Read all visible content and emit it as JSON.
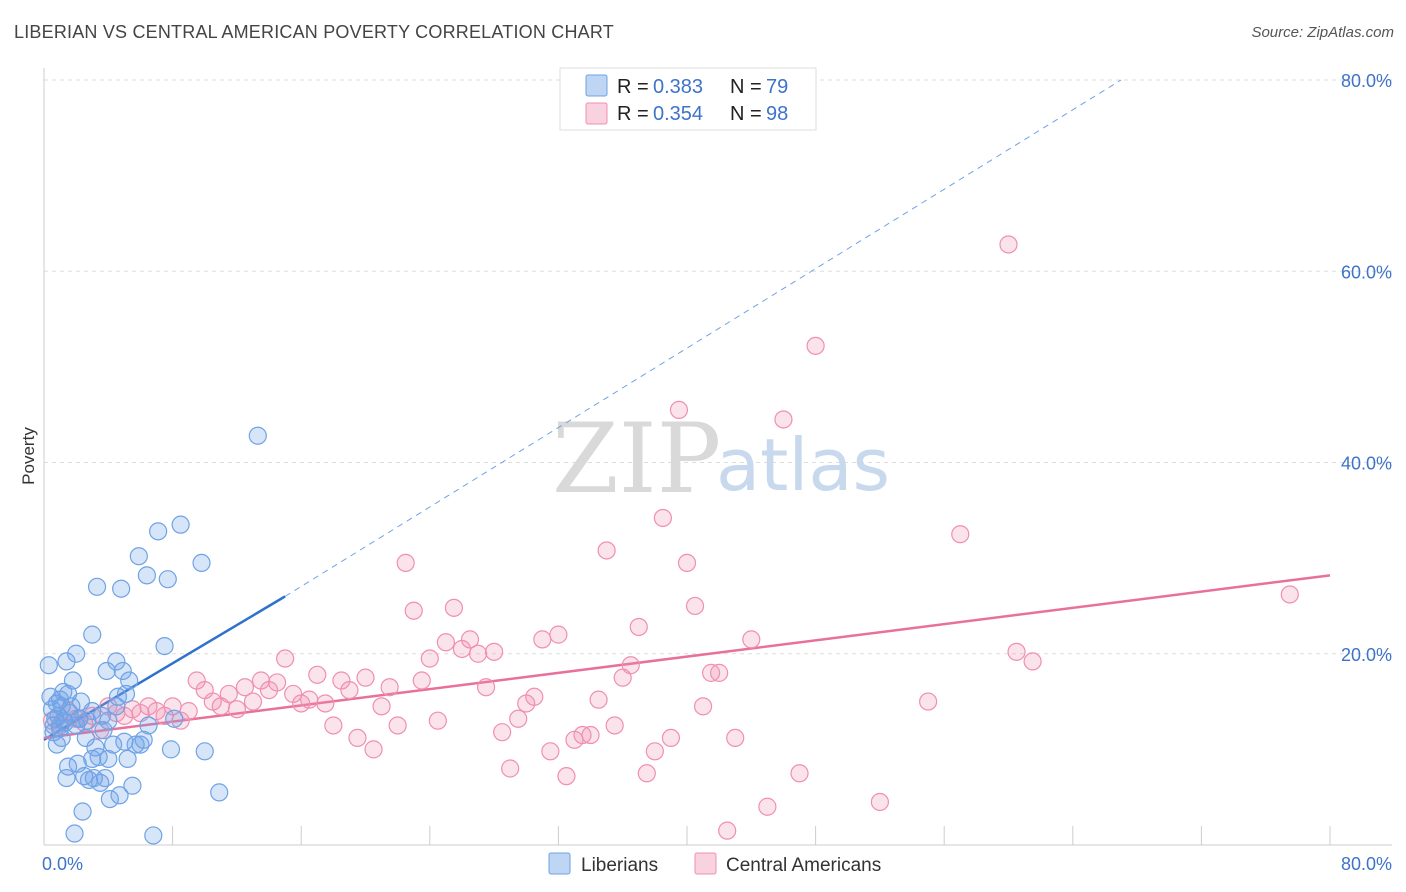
{
  "header": {
    "title": "LIBERIAN VS CENTRAL AMERICAN POVERTY CORRELATION CHART",
    "source": "Source: ZipAtlas.com"
  },
  "watermark": {
    "part1": "ZIP",
    "part2": "atlas"
  },
  "legend": {
    "rows": [
      {
        "r_label": "R =",
        "r_value": "0.383",
        "n_label": "N =",
        "n_value": "79",
        "color": "#6fa3e6"
      },
      {
        "r_label": "R =",
        "r_value": "0.354",
        "n_label": "N =",
        "n_value": "98",
        "color": "#f08fb0"
      }
    ]
  },
  "bottom_legend": [
    {
      "label": "Liberians",
      "color": "#6fa3e6"
    },
    {
      "label": "Central Americans",
      "color": "#f08fb0"
    }
  ],
  "chart_data": {
    "type": "scatter",
    "title": "LIBERIAN VS CENTRAL AMERICAN POVERTY CORRELATION CHART",
    "xlabel": "",
    "ylabel": "Poverty",
    "xlim": [
      0,
      80
    ],
    "ylim": [
      0,
      80
    ],
    "x_tick_labels": [
      "0.0%",
      "80.0%"
    ],
    "y_ticks": [
      20,
      40,
      60,
      80
    ],
    "y_tick_labels": [
      "20.0%",
      "40.0%",
      "60.0%",
      "80.0%"
    ],
    "grid": true,
    "legend_position": "top-center",
    "series": [
      {
        "name": "Liberians",
        "color": "#6fa3e6",
        "trend": {
          "x": [
            0,
            15
          ],
          "y": [
            11.0,
            26.0
          ],
          "extended_to": [
            67,
            80
          ]
        },
        "points": [
          [
            0.3,
            18.8
          ],
          [
            0.4,
            15.5
          ],
          [
            0.5,
            14.2
          ],
          [
            0.6,
            12.5
          ],
          [
            0.6,
            11.8
          ],
          [
            0.7,
            13.2
          ],
          [
            0.8,
            14.8
          ],
          [
            0.8,
            10.5
          ],
          [
            0.9,
            13.5
          ],
          [
            1.0,
            15.2
          ],
          [
            1.0,
            12.2
          ],
          [
            1.1,
            14.5
          ],
          [
            1.2,
            16.0
          ],
          [
            1.2,
            13.0
          ],
          [
            1.3,
            12.8
          ],
          [
            1.4,
            19.2
          ],
          [
            1.4,
            7.0
          ],
          [
            1.5,
            8.2
          ],
          [
            1.5,
            15.8
          ],
          [
            1.6,
            13.8
          ],
          [
            1.7,
            14.5
          ],
          [
            1.8,
            17.2
          ],
          [
            1.9,
            1.2
          ],
          [
            2.0,
            12.5
          ],
          [
            2.0,
            20.0
          ],
          [
            2.1,
            8.5
          ],
          [
            2.2,
            13.2
          ],
          [
            2.3,
            15.0
          ],
          [
            2.4,
            3.5
          ],
          [
            2.5,
            7.2
          ],
          [
            2.6,
            11.2
          ],
          [
            2.7,
            13.0
          ],
          [
            2.8,
            6.8
          ],
          [
            3.0,
            9.0
          ],
          [
            3.0,
            22.0
          ],
          [
            3.1,
            7.0
          ],
          [
            3.2,
            10.2
          ],
          [
            3.3,
            27.0
          ],
          [
            3.4,
            9.2
          ],
          [
            3.5,
            6.5
          ],
          [
            3.6,
            13.5
          ],
          [
            3.7,
            12.0
          ],
          [
            3.8,
            7.0
          ],
          [
            3.9,
            18.2
          ],
          [
            4.0,
            9.0
          ],
          [
            4.1,
            4.8
          ],
          [
            4.3,
            10.5
          ],
          [
            4.5,
            14.5
          ],
          [
            4.5,
            19.2
          ],
          [
            4.6,
            15.5
          ],
          [
            4.7,
            5.2
          ],
          [
            4.8,
            26.8
          ],
          [
            4.9,
            18.2
          ],
          [
            5.0,
            10.8
          ],
          [
            5.1,
            15.8
          ],
          [
            5.2,
            9.0
          ],
          [
            5.3,
            17.2
          ],
          [
            5.5,
            6.2
          ],
          [
            5.7,
            10.5
          ],
          [
            5.9,
            30.2
          ],
          [
            6.0,
            10.5
          ],
          [
            6.2,
            11.0
          ],
          [
            6.4,
            28.2
          ],
          [
            6.5,
            12.5
          ],
          [
            6.8,
            1.0
          ],
          [
            7.1,
            32.8
          ],
          [
            7.5,
            20.8
          ],
          [
            7.7,
            27.8
          ],
          [
            7.9,
            10.0
          ],
          [
            8.1,
            13.2
          ],
          [
            8.5,
            33.5
          ],
          [
            9.8,
            29.5
          ],
          [
            10.0,
            9.8
          ],
          [
            10.9,
            5.5
          ],
          [
            13.3,
            42.8
          ],
          [
            2.2,
            13.2
          ],
          [
            1.1,
            11.2
          ],
          [
            3.0,
            14.0
          ],
          [
            4.0,
            13.0
          ]
        ]
      },
      {
        "name": "Central Americans",
        "color": "#f08fb0",
        "trend": {
          "x": [
            0,
            80
          ],
          "y": [
            11.2,
            28.2
          ]
        },
        "points": [
          [
            0.5,
            13.0
          ],
          [
            1.0,
            12.5
          ],
          [
            1.5,
            14.0
          ],
          [
            2.0,
            13.2
          ],
          [
            2.5,
            12.8
          ],
          [
            3.0,
            13.5
          ],
          [
            3.5,
            12.0
          ],
          [
            4.0,
            14.5
          ],
          [
            4.5,
            13.8
          ],
          [
            5.0,
            13.5
          ],
          [
            5.5,
            14.2
          ],
          [
            6.0,
            13.8
          ],
          [
            6.5,
            14.5
          ],
          [
            7.0,
            14.0
          ],
          [
            7.5,
            13.5
          ],
          [
            8.0,
            14.5
          ],
          [
            8.5,
            13.0
          ],
          [
            9.0,
            14.0
          ],
          [
            9.5,
            17.2
          ],
          [
            10.0,
            16.2
          ],
          [
            10.5,
            15.0
          ],
          [
            11.0,
            14.5
          ],
          [
            11.5,
            15.8
          ],
          [
            12.0,
            14.2
          ],
          [
            12.5,
            16.5
          ],
          [
            13.0,
            15.0
          ],
          [
            13.5,
            17.2
          ],
          [
            14.0,
            16.2
          ],
          [
            14.5,
            17.0
          ],
          [
            15.0,
            19.5
          ],
          [
            15.5,
            15.8
          ],
          [
            16.0,
            14.8
          ],
          [
            16.5,
            15.2
          ],
          [
            17.0,
            17.8
          ],
          [
            17.5,
            14.8
          ],
          [
            18.0,
            12.5
          ],
          [
            18.5,
            17.2
          ],
          [
            19.0,
            16.2
          ],
          [
            19.5,
            11.2
          ],
          [
            20.0,
            17.5
          ],
          [
            20.5,
            10.0
          ],
          [
            21.0,
            14.5
          ],
          [
            21.5,
            16.5
          ],
          [
            22.0,
            12.5
          ],
          [
            22.5,
            29.5
          ],
          [
            23.0,
            24.5
          ],
          [
            23.5,
            17.2
          ],
          [
            24.0,
            19.5
          ],
          [
            24.5,
            13.0
          ],
          [
            25.0,
            21.2
          ],
          [
            25.5,
            24.8
          ],
          [
            26.0,
            20.5
          ],
          [
            26.5,
            21.5
          ],
          [
            27.0,
            20.0
          ],
          [
            27.5,
            16.5
          ],
          [
            28.0,
            20.2
          ],
          [
            28.5,
            11.8
          ],
          [
            29.0,
            8.0
          ],
          [
            29.5,
            13.2
          ],
          [
            30.0,
            14.8
          ],
          [
            30.5,
            15.5
          ],
          [
            31.0,
            21.5
          ],
          [
            31.5,
            9.8
          ],
          [
            32.0,
            22.0
          ],
          [
            32.5,
            7.2
          ],
          [
            33.0,
            11.0
          ],
          [
            33.5,
            11.5
          ],
          [
            34.0,
            11.5
          ],
          [
            34.5,
            15.2
          ],
          [
            35.0,
            30.8
          ],
          [
            35.5,
            12.5
          ],
          [
            36.0,
            17.5
          ],
          [
            36.5,
            18.8
          ],
          [
            37.0,
            22.8
          ],
          [
            37.5,
            7.5
          ],
          [
            38.0,
            9.8
          ],
          [
            38.5,
            34.2
          ],
          [
            39.0,
            11.2
          ],
          [
            39.5,
            45.5
          ],
          [
            40.0,
            29.5
          ],
          [
            40.5,
            25.0
          ],
          [
            41.0,
            14.5
          ],
          [
            41.5,
            18.0
          ],
          [
            42.0,
            18.0
          ],
          [
            42.5,
            1.5
          ],
          [
            43.0,
            11.2
          ],
          [
            44.0,
            21.5
          ],
          [
            45.0,
            4.0
          ],
          [
            46.0,
            44.5
          ],
          [
            47.0,
            7.5
          ],
          [
            48.0,
            52.2
          ],
          [
            52.0,
            4.5
          ],
          [
            55.0,
            15.0
          ],
          [
            57.0,
            32.5
          ],
          [
            60.0,
            62.8
          ],
          [
            60.5,
            20.2
          ],
          [
            61.5,
            19.2
          ],
          [
            77.5,
            26.2
          ]
        ]
      }
    ]
  }
}
